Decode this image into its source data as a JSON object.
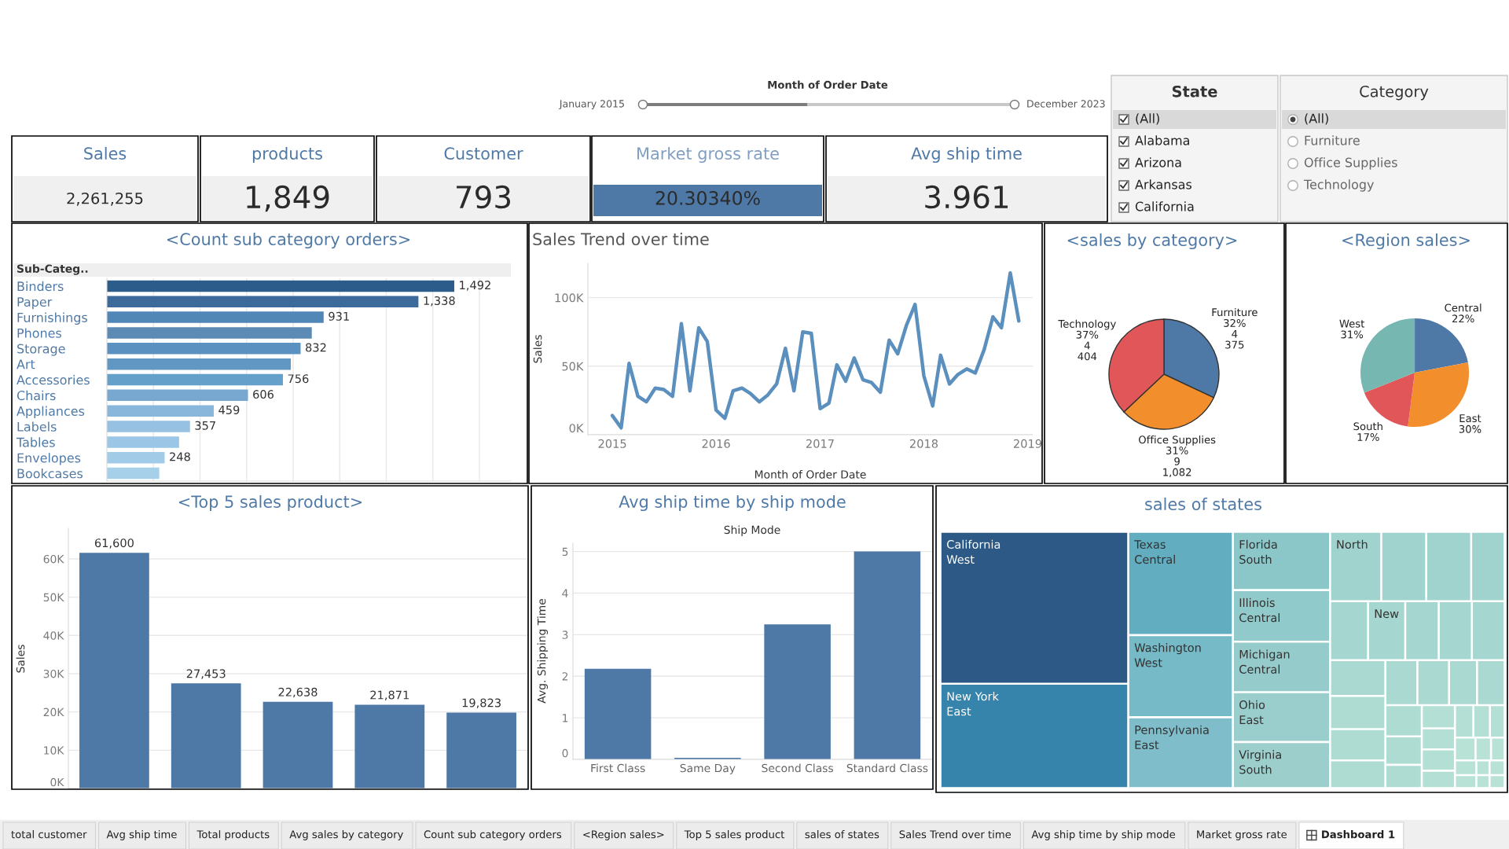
{
  "chart_data": [
    {
      "type": "other",
      "title": "Month of Order Date",
      "annotations": [
        "January 2015",
        "December 2023"
      ]
    },
    {
      "type": "other",
      "title": "State",
      "categories": [
        "(All)",
        "Alabama",
        "Arizona",
        "Arkansas",
        "California"
      ]
    },
    {
      "type": "other",
      "title": "Category",
      "categories": [
        "(All)",
        "Furniture",
        "Office Supplies",
        "Technology"
      ]
    },
    {
      "type": "other",
      "title": "Sales",
      "annotations": [
        "2,261,255"
      ],
      "colors": [
        "#f0f0f0"
      ]
    },
    {
      "type": "other",
      "title": "products",
      "annotations": [
        "1,849"
      ],
      "colors": [
        "#f0f0f0"
      ]
    },
    {
      "type": "other",
      "title": "Customer",
      "annotations": [
        "793"
      ],
      "colors": [
        "#f0f0f0"
      ]
    },
    {
      "type": "other",
      "title": "Market gross rate",
      "annotations": [
        "20.30340%"
      ],
      "colors": [
        "#4e79a7"
      ]
    },
    {
      "type": "other",
      "title": "Avg ship time",
      "annotations": [
        "3.961"
      ],
      "colors": [
        "#f0f0f0"
      ]
    },
    {
      "type": "bar",
      "orientation": "horizontal",
      "title": "<Count sub category orders>",
      "ylabel": "Sub-Categ..",
      "categories": [
        "Binders",
        "Paper",
        "Furnishings",
        "Phones",
        "Storage",
        "Art",
        "Accessories",
        "Chairs",
        "Appliances",
        "Labels",
        "Tables",
        "Envelopes",
        "Bookcases"
      ],
      "values": [
        1492,
        1338,
        931,
        880,
        832,
        790,
        756,
        606,
        459,
        357,
        310,
        248,
        225
      ],
      "colors": [
        "#2b5c8a",
        "#3b6a9b",
        "#5087b7",
        "#5b8bb4",
        "#5b91c0",
        "#6198c3",
        "#65a0ca",
        "#78a7cf",
        "#89b7dc",
        "#96c1e2",
        "#9bc6e5",
        "#a1cbe7",
        "#a6d0ea"
      ],
      "value_labels": [
        "1,492",
        "1,338",
        "931",
        null,
        "832",
        null,
        "756",
        "606",
        "459",
        "357",
        null,
        "248",
        null
      ],
      "xlim": [
        0,
        1735
      ],
      "xticks": [
        {
          "value": 200,
          "label": null
        },
        {
          "value": 400,
          "label": null
        },
        {
          "value": 600,
          "label": null
        },
        {
          "value": 800,
          "label": null
        },
        {
          "value": 1000,
          "label": null
        },
        {
          "value": 1200,
          "label": null
        },
        {
          "value": 1400,
          "label": null
        },
        {
          "value": 1600,
          "label": null
        }
      ],
      "grid": "x",
      "tick_labels": "y"
    },
    {
      "type": "line",
      "title": "Sales Trend over time",
      "xlabel": "Month of Order Date",
      "ylabel": "Sales",
      "x": [
        "2015-01",
        "2015-02",
        "2015-03",
        "2015-04",
        "2015-05",
        "2015-06",
        "2015-07",
        "2015-08",
        "2015-09",
        "2015-10",
        "2015-11",
        "2015-12",
        "2016-01",
        "2016-02",
        "2016-03",
        "2016-04",
        "2016-05",
        "2016-06",
        "2016-07",
        "2016-08",
        "2016-09",
        "2016-10",
        "2016-11",
        "2016-12",
        "2017-01",
        "2017-02",
        "2017-03",
        "2017-04",
        "2017-05",
        "2017-06",
        "2017-07",
        "2017-08",
        "2017-09",
        "2017-10",
        "2017-11",
        "2017-12",
        "2018-01",
        "2018-02",
        "2018-03",
        "2018-04",
        "2018-05",
        "2018-06",
        "2018-07",
        "2018-08",
        "2018-09",
        "2018-10",
        "2018-11",
        "2018-12"
      ],
      "series": [
        {
          "color": "#5b8fbd",
          "values": [
            14000,
            5000,
            52000,
            28000,
            24000,
            34000,
            33000,
            28000,
            81000,
            32000,
            78000,
            68000,
            18000,
            12000,
            32000,
            34000,
            30000,
            24000,
            29000,
            37000,
            63000,
            32000,
            75000,
            74000,
            19000,
            23000,
            51000,
            39000,
            56000,
            40000,
            38000,
            31000,
            69000,
            59000,
            80000,
            95000,
            43000,
            21000,
            58000,
            37000,
            44000,
            48000,
            45000,
            62000,
            86000,
            78000,
            118000,
            83000
          ]
        }
      ],
      "xlim": [
        "2014-10-07",
        "2019-01-19"
      ],
      "xticks": [
        "2015",
        "2016",
        "2017",
        "2018",
        "2019"
      ],
      "ylim": [
        0,
        125000
      ],
      "yticks": [
        {
          "value": 0,
          "label": "0K"
        },
        {
          "value": 50000,
          "label": "50K"
        },
        {
          "value": 100000,
          "label": "100K"
        }
      ],
      "grid": "y"
    },
    {
      "type": "pie",
      "title": "<sales by category>",
      "categories": [
        "Furniture",
        "Office Supplies",
        "Technology"
      ],
      "values": [
        32,
        31,
        37
      ],
      "colors": [
        "#4e79a7",
        "#f28e2b",
        "#e15759"
      ],
      "value_labels": [
        "32%\n4\n375",
        "31%\n9\n1,082",
        "37%\n4\n404"
      ]
    },
    {
      "type": "pie",
      "title": "<Region sales>",
      "categories": [
        "Central",
        "East",
        "South",
        "West"
      ],
      "values": [
        22,
        30,
        17,
        31
      ],
      "colors": [
        "#4e79a7",
        "#f28e2b",
        "#e15759",
        "#76b7b2"
      ],
      "value_labels": [
        "22%",
        "30%",
        "17%",
        "31%"
      ]
    },
    {
      "type": "bar",
      "title": "<Top 5 sales product>",
      "ylabel": "Sales",
      "categories": [
        null,
        null,
        null,
        null,
        null
      ],
      "series": [
        {
          "color": "#4e79a7",
          "values": [
            61600,
            27453,
            22638,
            21871,
            19823
          ]
        }
      ],
      "value_labels": [
        "61,600",
        "27,453",
        "22,638",
        "21,871",
        "19,823"
      ],
      "ylim": [
        0,
        68000
      ],
      "yticks": [
        {
          "value": 0,
          "label": "0K"
        },
        {
          "value": 10000,
          "label": "10K"
        },
        {
          "value": 20000,
          "label": "20K"
        },
        {
          "value": 30000,
          "label": "30K"
        },
        {
          "value": 40000,
          "label": "40K"
        },
        {
          "value": 50000,
          "label": "50K"
        },
        {
          "value": 60000,
          "label": "60K"
        }
      ],
      "grid": "y",
      "tick_labels": "y"
    },
    {
      "type": "bar",
      "title": "Avg ship time by ship mode",
      "xlabel": "Ship Mode",
      "ylabel": "Avg. Shipping Time",
      "categories": [
        "First Class",
        "Same Day",
        "Second Class",
        "Standard Class"
      ],
      "series": [
        {
          "color": "#4e79a7",
          "values": [
            2.18,
            0.04,
            3.25,
            5.0
          ]
        }
      ],
      "ylim": [
        0,
        5.2
      ],
      "yticks": [
        0,
        1,
        2,
        3,
        4,
        5
      ],
      "grid": "y"
    },
    {
      "type": "other",
      "title": "sales of states",
      "categories": [
        "California\nWest",
        "New York\nEast",
        "Texas\nCentral",
        "Washington\nWest",
        "Pennsylvania\nEast",
        "Florida\nSouth",
        "Illinois\nCentral",
        "Michigan\nCentral",
        "Ohio\nEast",
        "Virginia\nSouth",
        "North",
        null,
        null,
        null,
        null,
        "New",
        null,
        null,
        null,
        null,
        null,
        null,
        null,
        null,
        null,
        null,
        null,
        null,
        null,
        null,
        null,
        null,
        null,
        null,
        null,
        null,
        null,
        null,
        null,
        null,
        null,
        null,
        null,
        null,
        null,
        null
      ],
      "colors": [
        "#2c5985",
        "#3684ac",
        "#62adbf",
        "#76b9c7",
        "#7ebdc9",
        "#8bc7c9",
        "#91cacb",
        "#95cccb",
        "#99cecc",
        "#9ccfcc",
        "#a1d3ce",
        "#a1d3ce",
        "#a1d3ce",
        "#a1d3ce",
        "#a5d6cf",
        "#a5d6cf",
        "#a5d6cf",
        "#a5d6cf",
        "#a5d6cf",
        "#a9d9d0",
        "#a9d9d0",
        "#a9d9d0",
        "#a9d9d0",
        "#a9d9d0",
        "#aedcd2",
        "#aedcd2",
        "#aedcd2",
        "#aedcd2",
        "#aedcd2",
        "#aedcd2",
        "#b3dfd4",
        "#b3dfd4",
        "#b3dfd4",
        "#b3dfd4",
        "#b3dfd4",
        "#b3dfd4",
        "#b3dfd4",
        "#b9e2d6",
        "#b9e2d6",
        "#b9e2d6",
        "#b9e2d6",
        "#b9e2d6",
        "#b9e2d6",
        "#b9e2d6",
        "#b9e2d6",
        "#b9e2d6"
      ]
    },
    {
      "type": "other",
      "categories": [
        "total customer",
        "Avg ship time",
        "Total products",
        "Avg sales by category",
        "Count sub category orders",
        "<Region sales>",
        "Top 5 sales product",
        "sales of states",
        "Sales Trend over time",
        "Avg ship time by ship mode",
        "Market gross rate",
        "Dashboard 1"
      ]
    }
  ]
}
